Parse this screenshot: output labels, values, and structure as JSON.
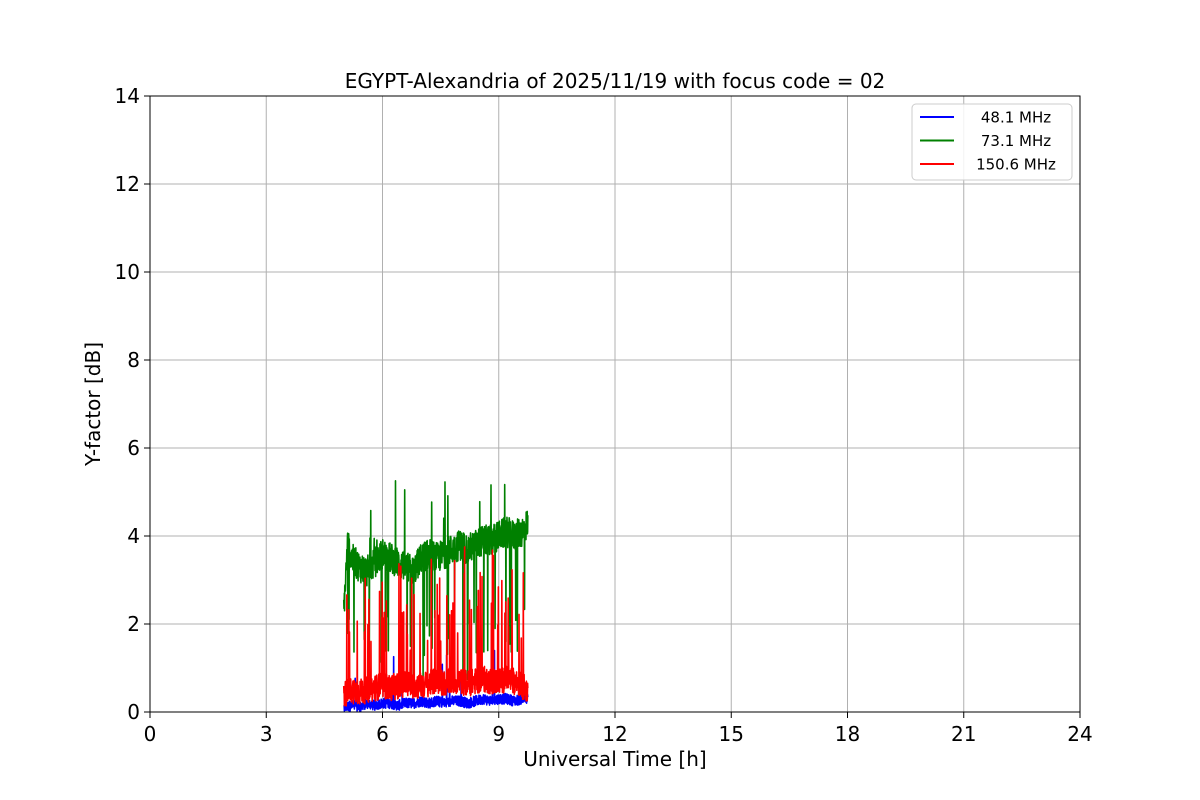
{
  "chart_data": {
    "type": "line",
    "title": "EGYPT-Alexandria of 2025/11/19 with focus code = 02",
    "xlabel": "Universal Time [h]",
    "ylabel": "Y-factor [dB]",
    "xlim": [
      0,
      24
    ],
    "ylim": [
      0,
      14
    ],
    "xticks": [
      "0",
      "3",
      "6",
      "9",
      "12",
      "15",
      "18",
      "21",
      "24"
    ],
    "yticks": [
      "0",
      "2",
      "4",
      "6",
      "8",
      "10",
      "12",
      "14"
    ],
    "grid": true,
    "legend_position": "top-right",
    "series": [
      {
        "name": "48.1 MHz",
        "color": "#0000ff",
        "x": [
          5.0,
          5.2,
          5.4,
          5.6,
          5.8,
          6.0,
          6.2,
          6.4,
          6.6,
          6.8,
          7.0,
          7.2,
          7.4,
          7.6,
          7.8,
          8.0,
          8.2,
          8.4,
          8.6,
          8.8,
          9.0,
          9.2,
          9.4,
          9.6,
          9.75
        ],
        "values": [
          0.1,
          0.15,
          0.1,
          0.2,
          0.15,
          0.2,
          0.2,
          0.15,
          0.2,
          0.2,
          0.25,
          0.2,
          0.25,
          0.2,
          0.25,
          0.25,
          0.2,
          0.25,
          0.3,
          0.25,
          0.3,
          0.3,
          0.25,
          0.3,
          0.3
        ]
      },
      {
        "name": "73.1 MHz",
        "color": "#008000",
        "x": [
          5.0,
          5.1,
          5.2,
          5.4,
          5.6,
          5.8,
          6.0,
          6.2,
          6.4,
          6.6,
          6.8,
          7.0,
          7.2,
          7.4,
          7.6,
          7.8,
          8.0,
          8.2,
          8.4,
          8.6,
          8.8,
          9.0,
          9.2,
          9.4,
          9.6,
          9.75
        ],
        "values": [
          2.3,
          3.8,
          3.5,
          3.3,
          3.2,
          3.4,
          3.6,
          3.5,
          3.4,
          3.3,
          3.2,
          3.5,
          3.6,
          3.5,
          3.6,
          3.7,
          3.8,
          3.7,
          3.8,
          3.9,
          3.9,
          4.0,
          4.1,
          4.0,
          4.1,
          4.3
        ]
      },
      {
        "name": "150.6 MHz",
        "color": "#ff0000",
        "x": [
          5.0,
          5.2,
          5.4,
          5.6,
          5.8,
          6.0,
          6.2,
          6.4,
          6.6,
          6.8,
          7.0,
          7.2,
          7.4,
          7.6,
          7.8,
          8.0,
          8.2,
          8.4,
          8.6,
          8.8,
          9.0,
          9.2,
          9.4,
          9.6,
          9.75
        ],
        "values": [
          0.4,
          0.5,
          0.45,
          0.5,
          0.55,
          0.6,
          0.55,
          0.6,
          0.65,
          0.6,
          0.6,
          0.65,
          0.7,
          0.65,
          0.7,
          0.7,
          0.65,
          0.7,
          0.75,
          0.7,
          0.7,
          0.75,
          0.7,
          0.6,
          0.5
        ]
      }
    ]
  }
}
